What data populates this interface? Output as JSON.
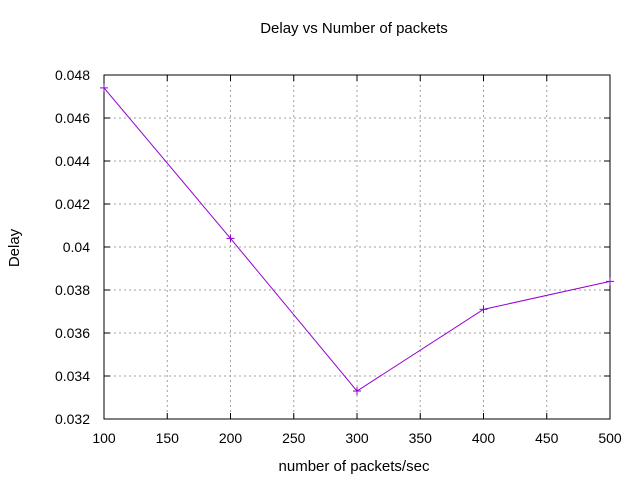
{
  "chart_data": {
    "type": "line",
    "title": "Delay vs Number of packets",
    "xlabel": "number of packets/sec",
    "ylabel": "Delay",
    "xlim": [
      100,
      500
    ],
    "ylim": [
      0.032,
      0.048
    ],
    "xticks": [
      100,
      150,
      200,
      250,
      300,
      350,
      400,
      450,
      500
    ],
    "yticks": [
      0.032,
      0.034,
      0.036,
      0.038,
      0.04,
      0.042,
      0.044,
      0.046,
      0.048
    ],
    "ytick_labels": [
      "0.032",
      "0.034",
      "0.036",
      "0.038",
      "0.04",
      "0.042",
      "0.044",
      "0.046",
      "0.048"
    ],
    "grid": true,
    "legend": "none",
    "series": [
      {
        "color": "#9400d3",
        "marker": "plus",
        "x": [
          100,
          200,
          300,
          400,
          500
        ],
        "y": [
          0.0474,
          0.0404,
          0.0333,
          0.0371,
          0.0384
        ]
      }
    ]
  }
}
